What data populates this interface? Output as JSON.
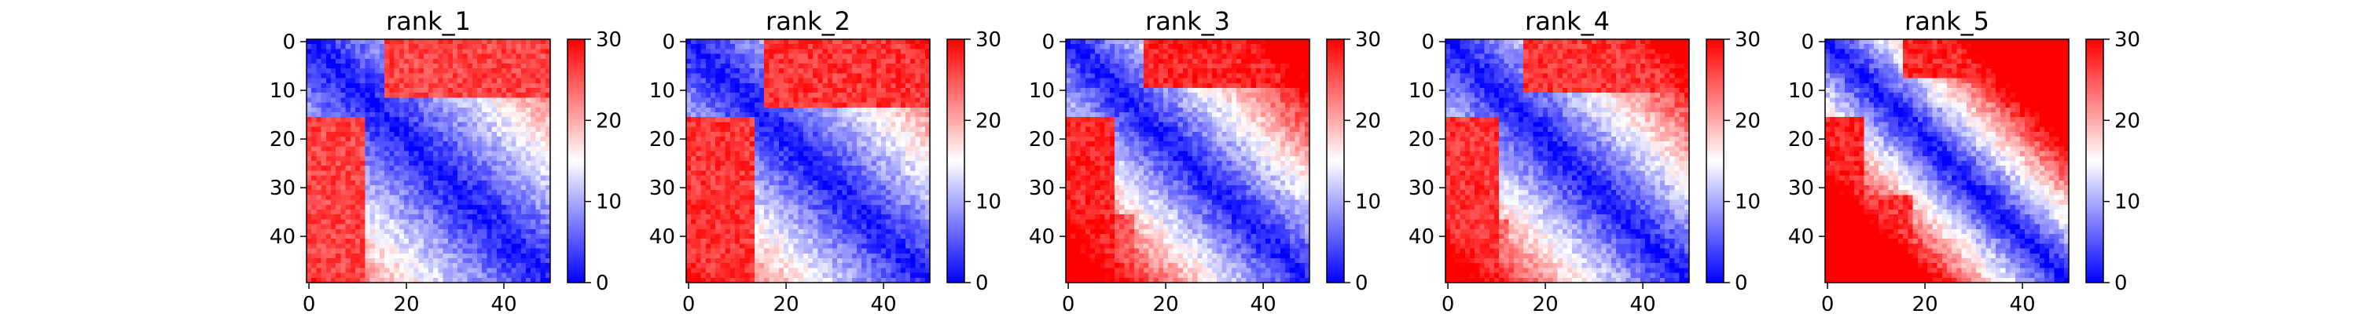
{
  "chart_data": [
    {
      "type": "heatmap",
      "title": "rank_1",
      "grid_size": 50,
      "xlim": [
        0,
        49
      ],
      "ylim": [
        49,
        0
      ],
      "xticks": [
        0,
        20,
        40
      ],
      "yticks": [
        0,
        10,
        20,
        30,
        40
      ],
      "colorbar": {
        "min": 0,
        "max": 30,
        "ticks": [
          0,
          10,
          20,
          30
        ],
        "colormap": "bwr"
      },
      "pattern": {
        "diag_low": 1,
        "slope": 0.55,
        "max": 30,
        "far_value": 26,
        "far_extent": 12,
        "lower_left_value": 22,
        "lower_left_extent": 10
      }
    },
    {
      "type": "heatmap",
      "title": "rank_2",
      "grid_size": 50,
      "xlim": [
        0,
        49
      ],
      "ylim": [
        49,
        0
      ],
      "xticks": [
        0,
        20,
        40
      ],
      "yticks": [
        0,
        10,
        20,
        30,
        40
      ],
      "colorbar": {
        "min": 0,
        "max": 30,
        "ticks": [
          0,
          10,
          20,
          30
        ],
        "colormap": "bwr"
      },
      "pattern": {
        "diag_low": 1,
        "slope": 0.6,
        "max": 30,
        "far_value": 27,
        "far_extent": 14,
        "lower_left_value": 20,
        "lower_left_extent": 12
      }
    },
    {
      "type": "heatmap",
      "title": "rank_3",
      "grid_size": 50,
      "xlim": [
        0,
        49
      ],
      "ylim": [
        49,
        0
      ],
      "xticks": [
        0,
        20,
        40
      ],
      "yticks": [
        0,
        10,
        20,
        30,
        40
      ],
      "colorbar": {
        "min": 0,
        "max": 30,
        "ticks": [
          0,
          10,
          20,
          30
        ],
        "colormap": "bwr"
      },
      "pattern": {
        "diag_low": 1,
        "slope": 0.75,
        "max": 30,
        "far_value": 28,
        "far_extent": 10,
        "lower_left_value": 25,
        "lower_left_extent": 14
      }
    },
    {
      "type": "heatmap",
      "title": "rank_4",
      "grid_size": 50,
      "xlim": [
        0,
        49
      ],
      "ylim": [
        49,
        0
      ],
      "xticks": [
        0,
        20,
        40
      ],
      "yticks": [
        0,
        10,
        20,
        30,
        40
      ],
      "colorbar": {
        "min": 0,
        "max": 30,
        "ticks": [
          0,
          10,
          20,
          30
        ],
        "colormap": "bwr"
      },
      "pattern": {
        "diag_low": 1,
        "slope": 0.7,
        "max": 30,
        "far_value": 27,
        "far_extent": 11,
        "lower_left_value": 24,
        "lower_left_extent": 13
      }
    },
    {
      "type": "heatmap",
      "title": "rank_5",
      "grid_size": 50,
      "xlim": [
        0,
        49
      ],
      "ylim": [
        49,
        0
      ],
      "xticks": [
        0,
        20,
        40
      ],
      "yticks": [
        0,
        10,
        20,
        30,
        40
      ],
      "colorbar": {
        "min": 0,
        "max": 30,
        "ticks": [
          0,
          10,
          20,
          30
        ],
        "colormap": "bwr"
      },
      "pattern": {
        "diag_low": 0.5,
        "slope": 1.1,
        "max": 30,
        "far_value": 28,
        "far_extent": 8,
        "lower_left_value": 27,
        "lower_left_extent": 18
      }
    }
  ]
}
